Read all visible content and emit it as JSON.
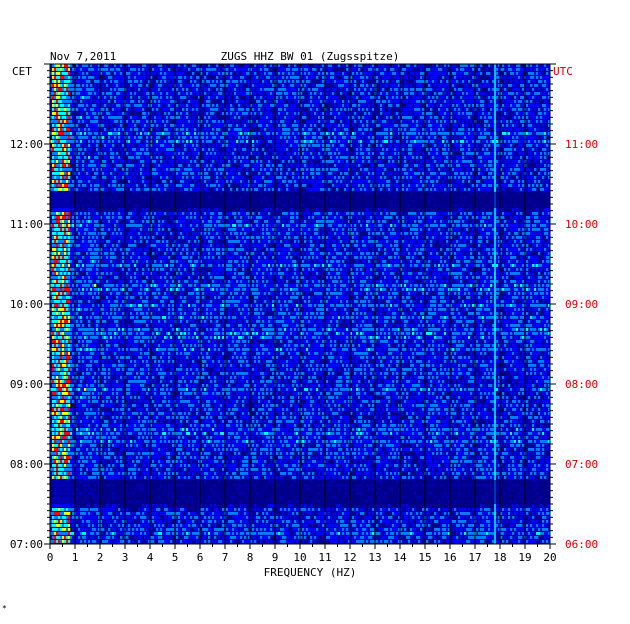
{
  "chart_data": {
    "type": "heatmap",
    "header": {
      "date": "Nov 7,2011",
      "station": "ZUGS HHZ BW 01 (Zugsspitze)"
    },
    "title": "ZUGS HHZ BW 01 (Zugsspitze)",
    "xlabel": "FREQUENCY (HZ)",
    "xlim": [
      0,
      20
    ],
    "x_ticks": [
      "0",
      "1",
      "2",
      "3",
      "4",
      "5",
      "6",
      "7",
      "8",
      "9",
      "10",
      "11",
      "12",
      "13",
      "14",
      "15",
      "16",
      "17",
      "18",
      "19",
      "20"
    ],
    "left_axis": {
      "label": "CET",
      "color": "#000000",
      "ticks": [
        "07:00",
        "08:00",
        "09:00",
        "10:00",
        "11:00",
        "12:00"
      ]
    },
    "right_axis": {
      "label": "UTC",
      "color": "#cc0000",
      "ticks": [
        "06:00",
        "07:00",
        "08:00",
        "09:00",
        "10:00",
        "11:00"
      ]
    },
    "time_range_utc_hours": [
      6,
      12
    ],
    "colorscale": [
      "#00008b",
      "#0000ff",
      "#0080ff",
      "#00ffff",
      "#ffff00",
      "#ff0000"
    ],
    "background_color": "#00008b",
    "features": [
      {
        "type": "persistent_line",
        "freq_hz": 17.8
      },
      {
        "type": "low_frequency_band",
        "freq_range_hz": [
          0.1,
          0.8
        ]
      },
      {
        "type": "quiet_period",
        "utc_hours": [
          10.2,
          10.4
        ]
      },
      {
        "type": "quiet_period",
        "utc_hours": [
          6.5,
          6.8
        ]
      }
    ]
  },
  "footer": {
    "mark": "*"
  }
}
